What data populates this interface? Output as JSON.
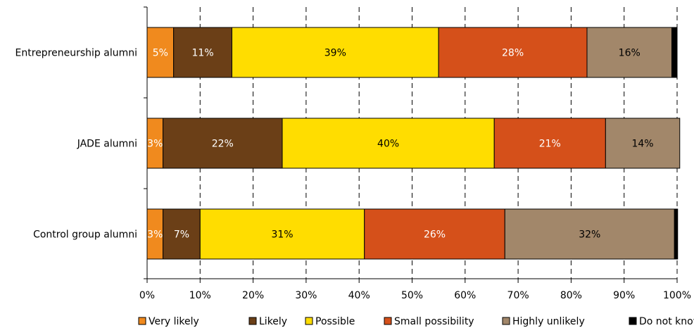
{
  "chart_data": {
    "type": "bar",
    "orientation": "horizontal",
    "stacked": true,
    "categories": [
      "Entrepreneurship alumni",
      "JADE alumni",
      "Control group alumni"
    ],
    "series": [
      {
        "name": "Very likely",
        "color": "#f08a1e",
        "values": [
          5,
          3,
          3
        ],
        "labels": [
          "5%",
          "3%",
          "3%"
        ],
        "label_color": "#ffffff"
      },
      {
        "name": "Likely",
        "color": "#6b3f17",
        "values": [
          11,
          22.5,
          7
        ],
        "labels": [
          "11%",
          "22%",
          "7%"
        ],
        "label_color": "#ffffff"
      },
      {
        "name": "Possible",
        "color": "#ffdd00",
        "values": [
          39,
          40,
          31
        ],
        "labels": [
          "39%",
          "40%",
          "31%"
        ],
        "label_color": "#000000"
      },
      {
        "name": "Small possibility",
        "color": "#d5501a",
        "values": [
          28,
          21,
          26.5
        ],
        "labels": [
          "28%",
          "21%",
          "26%"
        ],
        "label_color": "#ffffff"
      },
      {
        "name": "Highly unlikely",
        "color": "#a2876a",
        "values": [
          16,
          14,
          32
        ],
        "labels": [
          "16%",
          "14%",
          "32%"
        ],
        "label_color": "#000000"
      },
      {
        "name": "Do not know",
        "color": "#000000",
        "values": [
          1,
          0,
          0.6
        ],
        "labels": [
          "",
          "",
          ""
        ],
        "label_color": "#ffffff"
      }
    ],
    "xlim": [
      0,
      100
    ],
    "x_ticks": [
      "0%",
      "10%",
      "20%",
      "30%",
      "40%",
      "50%",
      "60%",
      "70%",
      "80%",
      "90%",
      "100%"
    ],
    "grid": "vertical dashed",
    "legend": "bottom"
  }
}
